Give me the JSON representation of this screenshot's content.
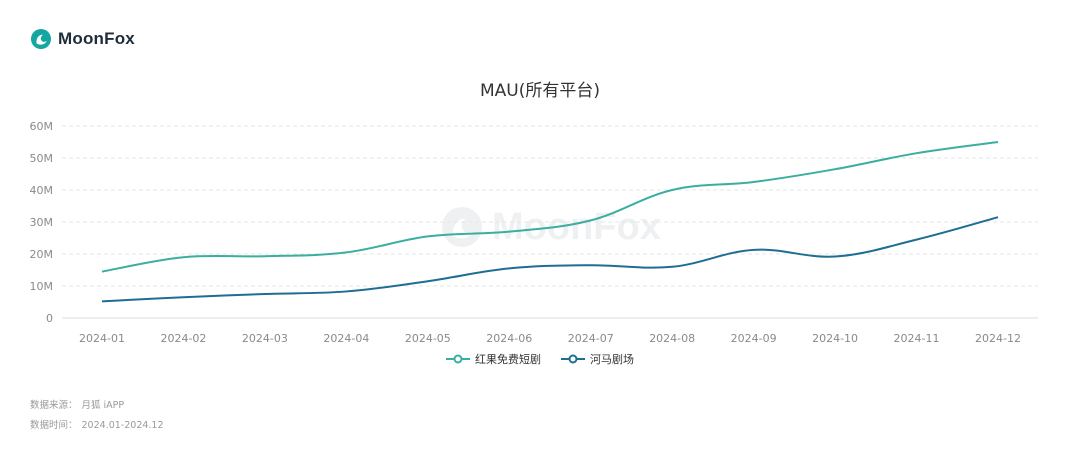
{
  "brand": {
    "name": "MoonFox",
    "accent": "#14a6a0"
  },
  "chart_data": {
    "type": "line",
    "title": "MAU(所有平台)",
    "x": [
      "2024-01",
      "2024-02",
      "2024-03",
      "2024-04",
      "2024-05",
      "2024-06",
      "2024-07",
      "2024-08",
      "2024-09",
      "2024-10",
      "2024-11",
      "2024-12"
    ],
    "series": [
      {
        "name": "红果免费短剧",
        "color": "#3aaf9f",
        "values": [
          14.5,
          19.0,
          19.3,
          20.5,
          25.5,
          27.0,
          30.5,
          40.0,
          42.5,
          46.5,
          51.5,
          55.0
        ]
      },
      {
        "name": "河马剧场",
        "color": "#1e6d93",
        "values": [
          5.2,
          6.5,
          7.5,
          8.3,
          11.5,
          15.5,
          16.5,
          16.0,
          21.3,
          19.2,
          24.5,
          31.5
        ]
      }
    ],
    "y_ticks": [
      "0",
      "10M",
      "20M",
      "30M",
      "40M",
      "50M",
      "60M"
    ],
    "ylim": [
      0,
      60
    ],
    "grid": true,
    "legend_position": "bottom"
  },
  "footer": {
    "source_label": "数据来源：",
    "source_value": "月狐 iAPP",
    "time_label": "数据时间：",
    "time_value": "2024.01-2024.12"
  }
}
